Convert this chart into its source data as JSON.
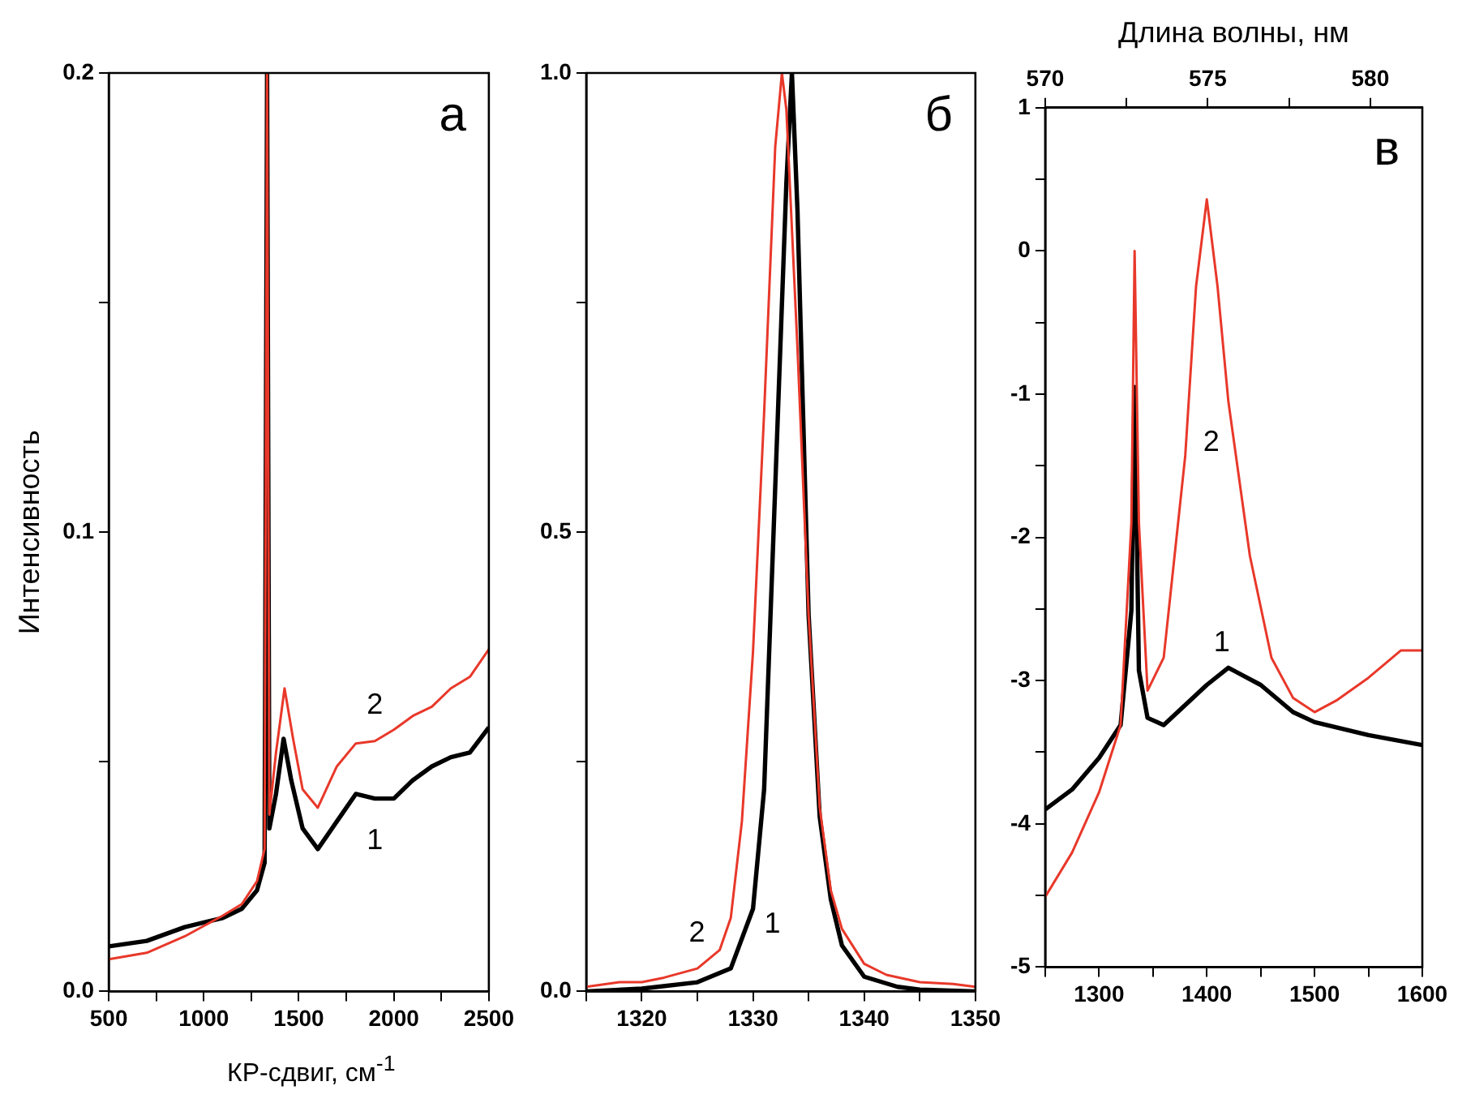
{
  "chart_data": [
    {
      "type": "line",
      "xlabel": "КР-сдвиг, см$^{-1}$",
      "ylabel": "Интенсивность",
      "annotations": [
        "а"
      ],
      "xlim": [
        500,
        2500
      ],
      "xticks": [
        500,
        {
          "value": 750,
          "label": null
        },
        1000,
        {
          "value": 1250,
          "label": null
        },
        1500,
        {
          "value": 1750,
          "label": null
        },
        2000,
        {
          "value": 2250,
          "label": null
        },
        2500
      ],
      "ylim": [
        0,
        0.2
      ],
      "yticks": [
        {
          "value": 0,
          "label": "0.0"
        },
        {
          "value": 0.05,
          "label": null
        },
        0.1,
        {
          "value": 0.15,
          "label": null
        },
        0.2
      ],
      "series": [
        {
          "name": "1",
          "color": "#000000",
          "x": [
            500,
            700,
            900,
            1100,
            1200,
            1280,
            1320,
            1333,
            1345,
            1380,
            1420,
            1460,
            1520,
            1600,
            1700,
            1800,
            1900,
            2000,
            2100,
            2200,
            2300,
            2400,
            2500
          ],
          "values": [
            0.0098,
            0.011,
            0.014,
            0.016,
            0.018,
            0.022,
            0.028,
            0.2,
            0.0355,
            0.043,
            0.055,
            0.046,
            0.0355,
            0.031,
            0.037,
            0.043,
            0.042,
            0.042,
            0.046,
            0.049,
            0.051,
            0.052,
            0.0575
          ]
        },
        {
          "name": "2",
          "color": "#e8382a",
          "x": [
            500,
            700,
            900,
            1100,
            1200,
            1280,
            1320,
            1333,
            1345,
            1380,
            1425,
            1470,
            1520,
            1600,
            1700,
            1800,
            1900,
            2000,
            2100,
            2200,
            2300,
            2400,
            2500
          ],
          "values": [
            0.007,
            0.0084,
            0.012,
            0.0165,
            0.019,
            0.024,
            0.031,
            0.2,
            0.0385,
            0.052,
            0.066,
            0.055,
            0.044,
            0.04,
            0.049,
            0.054,
            0.0545,
            0.057,
            0.06,
            0.062,
            0.066,
            0.0685,
            0.0745
          ]
        }
      ]
    },
    {
      "type": "line",
      "annotations": [
        "б"
      ],
      "xlim": [
        1315,
        1350
      ],
      "xticks": [
        {
          "value": 1315,
          "label": null
        },
        1320,
        {
          "value": 1325,
          "label": null
        },
        1330,
        {
          "value": 1335,
          "label": null
        },
        1340,
        {
          "value": 1345,
          "label": null
        },
        1350
      ],
      "ylim": [
        0,
        1
      ],
      "yticks": [
        {
          "value": 0,
          "label": "0.0"
        },
        {
          "value": 0.25,
          "label": null
        },
        0.5,
        {
          "value": 0.75,
          "label": null
        },
        {
          "value": 1,
          "label": "1.0"
        }
      ],
      "series": [
        {
          "name": "1",
          "color": "#000000",
          "x": [
            1315,
            1320,
            1325,
            1328,
            1330,
            1331,
            1332,
            1333,
            1333.5,
            1334,
            1335,
            1336,
            1337,
            1338,
            1340,
            1343,
            1345,
            1350
          ],
          "values": [
            0,
            0.003,
            0.01,
            0.025,
            0.09,
            0.22,
            0.55,
            0.88,
            1,
            0.85,
            0.41,
            0.19,
            0.1,
            0.05,
            0.016,
            0.005,
            0.002,
            0
          ]
        },
        {
          "name": "2",
          "color": "#e8382a",
          "x": [
            1315,
            1318,
            1320,
            1322,
            1325,
            1327,
            1328,
            1329,
            1330,
            1331,
            1332,
            1332.6,
            1333,
            1334,
            1335,
            1336,
            1337,
            1338,
            1340,
            1342,
            1345,
            1348,
            1350
          ],
          "values": [
            0.005,
            0.01,
            0.01,
            0.015,
            0.025,
            0.045,
            0.08,
            0.185,
            0.37,
            0.63,
            0.92,
            1,
            0.96,
            0.7,
            0.41,
            0.2,
            0.11,
            0.068,
            0.03,
            0.018,
            0.01,
            0.008,
            0.005
          ]
        }
      ]
    },
    {
      "type": "line",
      "x2label": "Длина волны, нм",
      "annotations": [
        "в"
      ],
      "xlim": [
        1250,
        1600
      ],
      "xticks": [
        {
          "value": 1250,
          "label": null
        },
        1300,
        {
          "value": 1350,
          "label": null
        },
        1400,
        {
          "value": 1450,
          "label": null
        },
        1500,
        {
          "value": 1550,
          "label": null
        },
        1600
      ],
      "x2lim": [
        570,
        581.6
      ],
      "x2ticks": [
        570,
        {
          "value": 572.5,
          "label": null
        },
        575,
        {
          "value": 577.5,
          "label": null
        },
        580
      ],
      "ylim": [
        -5,
        1
      ],
      "yticks": [
        -5,
        {
          "value": -4.5,
          "label": null
        },
        -4,
        {
          "value": -3.5,
          "label": null
        },
        -3,
        {
          "value": -2.5,
          "label": null
        },
        -2,
        {
          "value": -1.5,
          "label": null
        },
        -1,
        {
          "value": -0.5,
          "label": null
        },
        0,
        {
          "value": 0.5,
          "label": null
        },
        1
      ],
      "series": [
        {
          "name": "1",
          "color": "#000000",
          "x": [
            1250,
            1275,
            1300,
            1320,
            1330,
            1333,
            1337,
            1345,
            1360,
            1400,
            1420,
            1450,
            1480,
            1500,
            1550,
            1600
          ],
          "values": [
            -3.9,
            -3.76,
            -3.54,
            -3.31,
            -2.51,
            -0.95,
            -2.93,
            -3.26,
            -3.31,
            -3.03,
            -2.91,
            -3.03,
            -3.22,
            -3.29,
            -3.38,
            -3.45
          ]
        },
        {
          "name": "2",
          "color": "#e8382a",
          "x": [
            1250,
            1275,
            1300,
            1320,
            1330,
            1333,
            1337,
            1345,
            1360,
            1380,
            1390,
            1400,
            1410,
            1420,
            1440,
            1460,
            1480,
            1500,
            1520,
            1550,
            1580,
            1600
          ],
          "values": [
            -4.51,
            -4.2,
            -3.78,
            -3.31,
            -1.9,
            0,
            -1.9,
            -3.07,
            -2.84,
            -1.43,
            -0.25,
            0.36,
            -0.25,
            -1.05,
            -2.13,
            -2.84,
            -3.12,
            -3.22,
            -3.14,
            -2.98,
            -2.79,
            -2.79
          ]
        }
      ]
    }
  ]
}
